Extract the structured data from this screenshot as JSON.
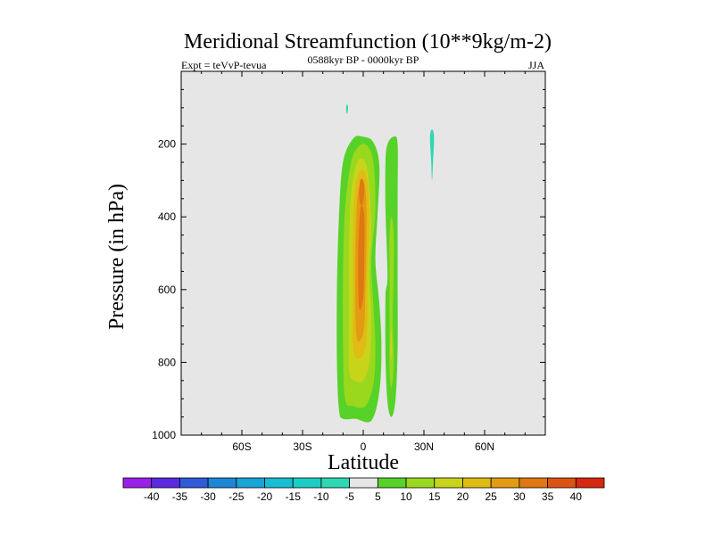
{
  "chart_data": {
    "type": "heatmap",
    "title": "Meridional Streamfunction (10**9kg/m-2)",
    "left_label": "Expt = teVvP-tevua",
    "center_label": "0588kyr BP - 0000kyr BP",
    "right_label": "JJA",
    "xlabel": "Latitude",
    "ylabel": "Pressure (in hPa)",
    "xlim": [
      -90,
      90
    ],
    "ylim": [
      1000,
      0
    ],
    "x_ticks": [
      {
        "value": -60,
        "label": "60S"
      },
      {
        "value": -30,
        "label": "30S"
      },
      {
        "value": 0,
        "label": "0"
      },
      {
        "value": 30,
        "label": "30N"
      },
      {
        "value": 60,
        "label": "60N"
      }
    ],
    "y_ticks": [
      {
        "value": 200,
        "label": "200"
      },
      {
        "value": 400,
        "label": "400"
      },
      {
        "value": 600,
        "label": "600"
      },
      {
        "value": 800,
        "label": "800"
      },
      {
        "value": 1000,
        "label": "1000"
      }
    ],
    "background_color": "#e6e6e6",
    "colorbar": {
      "labels": [
        "-40",
        "-35",
        "-30",
        "-25",
        "-20",
        "-15",
        "-10",
        "-5",
        "5",
        "10",
        "15",
        "20",
        "25",
        "30",
        "35",
        "40"
      ],
      "colors": [
        "#9b1fe8",
        "#5b2ae0",
        "#2f5bd8",
        "#1e86d6",
        "#17a4d6",
        "#16bdd3",
        "#1ccdc4",
        "#2ed8b3",
        "#e6e6e6",
        "#57d228",
        "#9ad81e",
        "#c8d41a",
        "#e0bb14",
        "#e29b12",
        "#e07712",
        "#db5412",
        "#d42810"
      ]
    },
    "contours": [
      {
        "name": "pos-5",
        "level": 5,
        "color": "#57d228",
        "points": [
          [
            -12,
            930
          ],
          [
            -13,
            800
          ],
          [
            -13,
            600
          ],
          [
            -12,
            400
          ],
          [
            -10,
            250
          ],
          [
            -5,
            185
          ],
          [
            0,
            180
          ],
          [
            5,
            195
          ],
          [
            8,
            260
          ],
          [
            7,
            400
          ],
          [
            6,
            520
          ],
          [
            8,
            640
          ],
          [
            9,
            760
          ],
          [
            8,
            880
          ],
          [
            4,
            960
          ],
          [
            -4,
            955
          ],
          [
            -10,
            955
          ]
        ]
      },
      {
        "name": "pos-10",
        "level": 10,
        "color": "#9ad81e",
        "points": [
          [
            -9,
            900
          ],
          [
            -10,
            750
          ],
          [
            -10,
            550
          ],
          [
            -9,
            380
          ],
          [
            -6,
            250
          ],
          [
            -2,
            205
          ],
          [
            2,
            205
          ],
          [
            5,
            250
          ],
          [
            6,
            380
          ],
          [
            4,
            520
          ],
          [
            5,
            640
          ],
          [
            6,
            760
          ],
          [
            5,
            860
          ],
          [
            1,
            920
          ],
          [
            -5,
            920
          ]
        ]
      },
      {
        "name": "pos-15",
        "level": 15,
        "color": "#c8d41a",
        "points": [
          [
            -7,
            820
          ],
          [
            -7,
            650
          ],
          [
            -7,
            480
          ],
          [
            -6,
            340
          ],
          [
            -3,
            250
          ],
          [
            1,
            250
          ],
          [
            3,
            320
          ],
          [
            4,
            440
          ],
          [
            3,
            560
          ],
          [
            4,
            680
          ],
          [
            3,
            800
          ],
          [
            0,
            850
          ],
          [
            -4,
            850
          ]
        ]
      },
      {
        "name": "pos-20",
        "level": 20,
        "color": "#e0bb14",
        "points": [
          [
            -5,
            760
          ],
          [
            -5,
            600
          ],
          [
            -5,
            450
          ],
          [
            -4,
            320
          ],
          [
            -1,
            270
          ],
          [
            2,
            300
          ],
          [
            3,
            420
          ],
          [
            2,
            560
          ],
          [
            2,
            680
          ],
          [
            1,
            760
          ],
          [
            -2,
            790
          ]
        ]
      },
      {
        "name": "pos-25",
        "level": 25,
        "color": "#e29b12",
        "points": [
          [
            -3.5,
            720
          ],
          [
            -4,
            560
          ],
          [
            -3.5,
            420
          ],
          [
            -2.5,
            330
          ],
          [
            0,
            300
          ],
          [
            1.5,
            360
          ],
          [
            1.5,
            480
          ],
          [
            1,
            600
          ],
          [
            0.5,
            700
          ],
          [
            -1.5,
            740
          ]
        ]
      },
      {
        "name": "pos-30",
        "level": 30,
        "color": "#e07712",
        "points": [
          [
            -2,
            650
          ],
          [
            -2.5,
            520
          ],
          [
            -2,
            420
          ],
          [
            -1,
            370
          ],
          [
            0.5,
            400
          ],
          [
            0.5,
            520
          ],
          [
            0,
            620
          ]
        ]
      },
      {
        "name": "pos-30b",
        "level": 30,
        "color": "#e07712",
        "points": [
          [
            -2,
            350
          ],
          [
            -1.5,
            300
          ],
          [
            0,
            300
          ],
          [
            0.5,
            330
          ],
          [
            -0.5,
            370
          ]
        ]
      },
      {
        "name": "right-5",
        "level": 5,
        "color": "#57d228",
        "points": [
          [
            11,
            380
          ],
          [
            11,
            250
          ],
          [
            12,
            200
          ],
          [
            15,
            180
          ],
          [
            17,
            200
          ],
          [
            17,
            350
          ],
          [
            17,
            560
          ],
          [
            17,
            760
          ],
          [
            16,
            900
          ],
          [
            14,
            950
          ],
          [
            12,
            910
          ],
          [
            11,
            780
          ],
          [
            11,
            620
          ],
          [
            12,
            560
          ]
        ]
      },
      {
        "name": "right-10",
        "level": 10,
        "color": "#9ad81e",
        "points": [
          [
            13,
            560
          ],
          [
            13,
            450
          ],
          [
            14,
            400
          ],
          [
            15,
            450
          ],
          [
            15,
            560
          ],
          [
            14.5,
            680
          ],
          [
            15,
            800
          ],
          [
            14,
            870
          ],
          [
            13,
            820
          ],
          [
            13,
            700
          ]
        ]
      },
      {
        "name": "right-15",
        "level": 15,
        "color": "#c8d41a",
        "points": [
          [
            13.4,
            760
          ],
          [
            13.5,
            720
          ],
          [
            14,
            715
          ],
          [
            14.3,
            760
          ],
          [
            14,
            790
          ],
          [
            13.6,
            790
          ]
        ]
      },
      {
        "name": "neg-a",
        "level": -5,
        "color": "#2ed8b3",
        "points": [
          [
            -8.5,
            100
          ],
          [
            -8,
            90
          ],
          [
            -7.5,
            100
          ],
          [
            -7.8,
            115
          ],
          [
            -8.2,
            115
          ]
        ]
      },
      {
        "name": "neg-b",
        "level": -5,
        "color": "#2ed8b3",
        "points": [
          [
            33,
            180
          ],
          [
            34,
            160
          ],
          [
            35,
            180
          ],
          [
            34.5,
            250
          ],
          [
            34,
            300
          ],
          [
            33.6,
            250
          ]
        ]
      }
    ]
  }
}
